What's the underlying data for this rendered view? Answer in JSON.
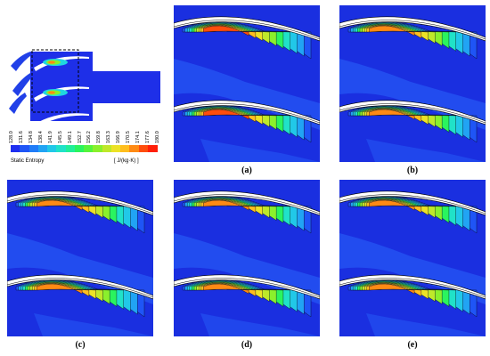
{
  "colorbar": {
    "title": "Static Entropy",
    "unit": "[ J/(kg·K) ]",
    "ticks": [
      "128.0",
      "131.6",
      "134.8",
      "138.4",
      "141.9",
      "145.5",
      "149.1",
      "152.7",
      "156.2",
      "159.8",
      "163.3",
      "166.9",
      "170.5",
      "174.1",
      "177.6",
      "180.0"
    ],
    "colors": [
      "#1e2ff0",
      "#1f55f6",
      "#1f7cf8",
      "#21a4f4",
      "#21c8e8",
      "#20e2c8",
      "#20ef98",
      "#2af45e",
      "#55f43c",
      "#8af02c",
      "#bfe82a",
      "#ece226",
      "#ffbe1e",
      "#ff8a14",
      "#ff4d0c",
      "#ff1f08"
    ]
  },
  "panels": [
    {
      "id": "a",
      "label": "(a)"
    },
    {
      "id": "b",
      "label": "(b)"
    },
    {
      "id": "c",
      "label": "(c)"
    },
    {
      "id": "d",
      "label": "(d)"
    },
    {
      "id": "e",
      "label": "(e)"
    }
  ]
}
